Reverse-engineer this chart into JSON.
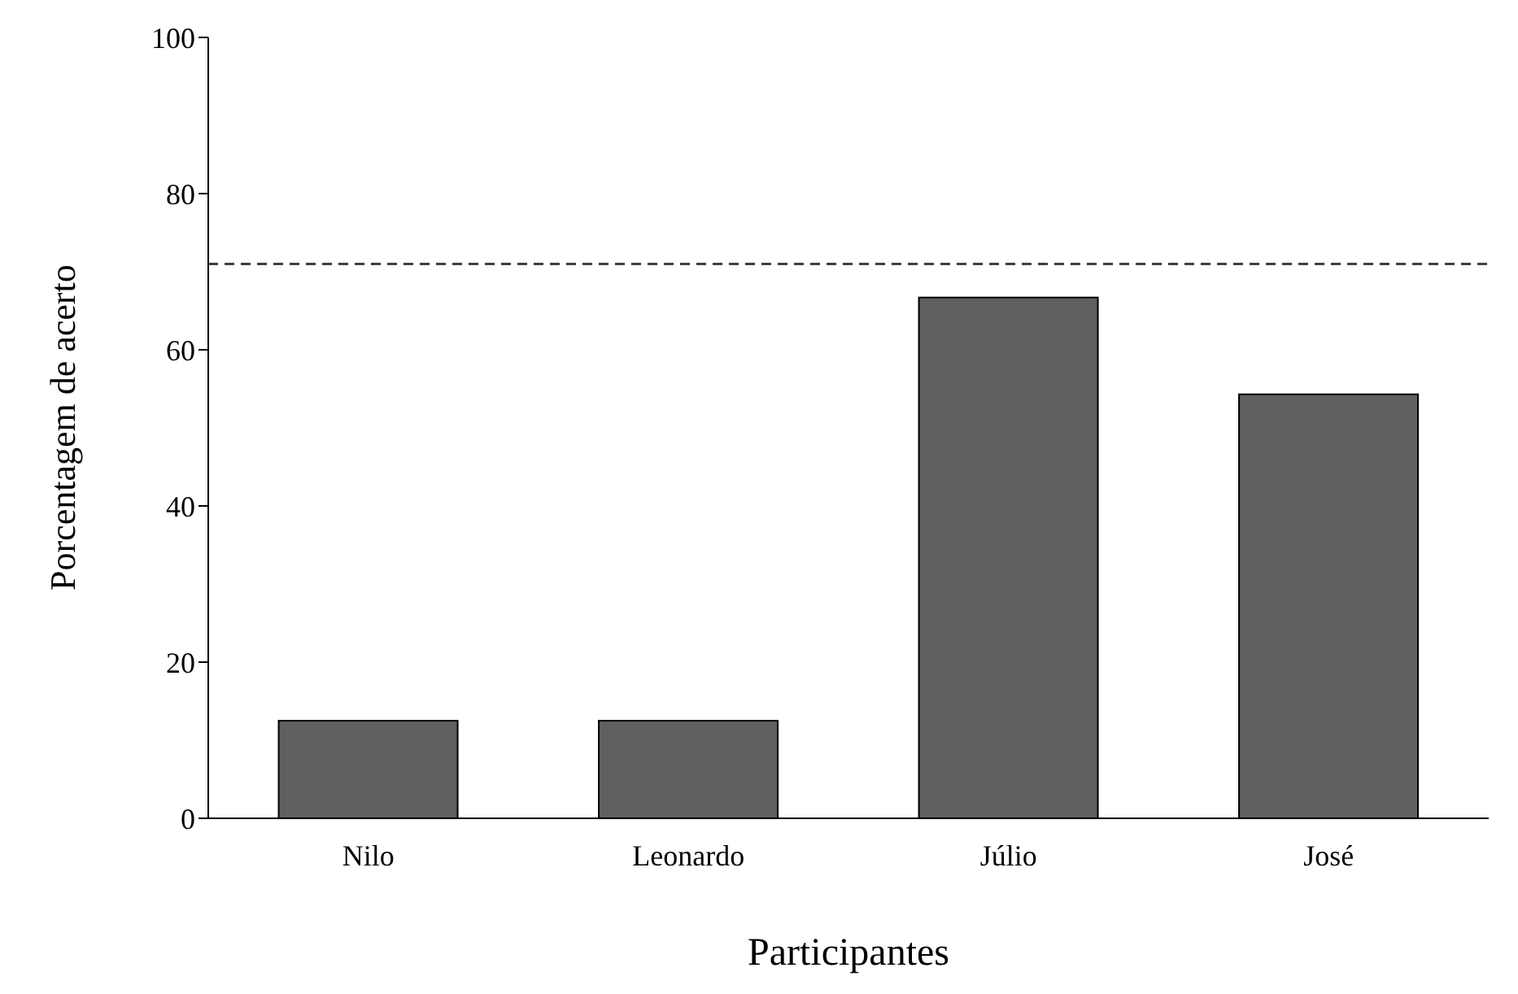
{
  "chart_data": {
    "type": "bar",
    "xlabel": "Participantes",
    "ylabel": "Porcentagem de acerto",
    "categories": [
      "Nilo",
      "Leonardo",
      "Júlio",
      "José"
    ],
    "values": [
      12.5,
      12.5,
      66.7,
      54.3
    ],
    "color": "#606060",
    "ylim": [
      0,
      100
    ],
    "yticks": [
      0,
      20,
      40,
      60,
      80,
      100
    ],
    "grid": false,
    "ref_lines": [
      {
        "axis": "y",
        "value": 71,
        "label": null,
        "color": "#404040",
        "line_style": "dashed"
      }
    ]
  }
}
